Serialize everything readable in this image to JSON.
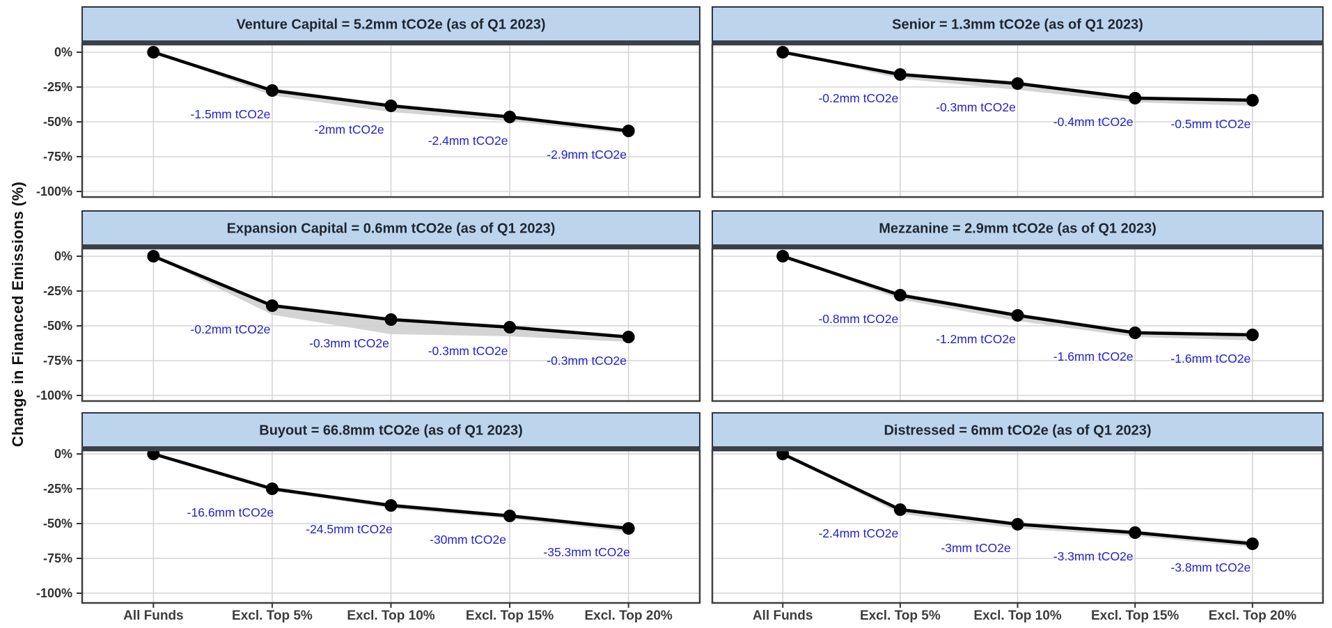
{
  "figure": {
    "y_axis_label": "Change in Financed Emissions (%)"
  },
  "colors": {
    "background": "#ffffff",
    "header_fill": "#bdd5ec",
    "header_border": "#2e3440",
    "header_bottom_bar": "#39404c",
    "panel_border": "#3f3f3f",
    "gridline": "#d5d5d5",
    "line": "#000000",
    "marker": "#000000",
    "band": "#cfcfcf",
    "point_label": "#2222cc",
    "axis_tick_text": "#303030",
    "x_label_text": "#3d3d3d"
  },
  "chart_data": {
    "type": "line",
    "layout": "facet-grid-2cols-3rows",
    "xlabel": "",
    "ylabel": "Change in Financed Emissions (%)",
    "ylim": [
      -100,
      0
    ],
    "grid": true,
    "x_categories": [
      "All Funds",
      "Excl. Top 5%",
      "Excl. Top 10%",
      "Excl. Top 15%",
      "Excl. Top 20%"
    ],
    "y_ticks": [
      "0%",
      "-25%",
      "-50%",
      "-75%",
      "-100%"
    ],
    "y_tick_values": [
      0,
      -25,
      -50,
      -75,
      -100
    ],
    "panels": [
      {
        "slug": "venture-capital",
        "title": "Venture Capital = 5.2mm tCO2e (as of Q1 2023)",
        "values_pct": [
          0,
          -27.5,
          -38.5,
          -46.5,
          -56.5
        ],
        "band_upper_pct": [
          0,
          -26,
          -37,
          -45,
          -55
        ],
        "band_lower_pct": [
          0,
          -31,
          -43,
          -49.5,
          -58.5
        ],
        "point_labels": [
          "",
          "-1.5mm tCO2e",
          "-2mm tCO2e",
          "-2.4mm tCO2e",
          "-2.9mm tCO2e"
        ]
      },
      {
        "slug": "senior",
        "title": "Senior = 1.3mm tCO2e (as of Q1 2023)",
        "values_pct": [
          0,
          -16,
          -22.5,
          -33,
          -34.5
        ],
        "band_upper_pct": [
          0,
          -14.5,
          -21,
          -31.5,
          -33
        ],
        "band_lower_pct": [
          0,
          -19,
          -27,
          -36,
          -38.5
        ],
        "point_labels": [
          "",
          "-0.2mm tCO2e",
          "-0.3mm tCO2e",
          "-0.4mm tCO2e",
          "-0.5mm tCO2e"
        ]
      },
      {
        "slug": "expansion-capital",
        "title": "Expansion Capital = 0.6mm tCO2e (as of Q1 2023)",
        "values_pct": [
          0,
          -35.5,
          -45.5,
          -51,
          -58
        ],
        "band_upper_pct": [
          0,
          -34,
          -44,
          -49.5,
          -56.5
        ],
        "band_lower_pct": [
          0,
          -42,
          -56,
          -57.5,
          -61.5
        ],
        "point_labels": [
          "",
          "-0.2mm tCO2e",
          "-0.3mm tCO2e",
          "-0.3mm tCO2e",
          "-0.3mm tCO2e"
        ]
      },
      {
        "slug": "mezzanine",
        "title": "Mezzanine = 2.9mm tCO2e (as of Q1 2023)",
        "values_pct": [
          0,
          -28,
          -42.5,
          -55,
          -56.5
        ],
        "band_upper_pct": [
          0,
          -26.5,
          -41,
          -53.5,
          -55
        ],
        "band_lower_pct": [
          0,
          -31,
          -46.5,
          -58,
          -60.5
        ],
        "point_labels": [
          "",
          "-0.8mm tCO2e",
          "-1.2mm tCO2e",
          "-1.6mm tCO2e",
          "-1.6mm tCO2e"
        ]
      },
      {
        "slug": "buyout",
        "title": "Buyout = 66.8mm tCO2e (as of Q1 2023)",
        "values_pct": [
          0,
          -25,
          -37,
          -44.5,
          -53.5
        ],
        "band_upper_pct": [
          0,
          -24,
          -35.5,
          -43,
          -52
        ],
        "band_lower_pct": [
          0,
          -26.5,
          -39,
          -46.5,
          -56
        ],
        "point_labels": [
          "",
          "-16.6mm tCO2e",
          "-24.5mm tCO2e",
          "-30mm tCO2e",
          "-35.3mm tCO2e"
        ]
      },
      {
        "slug": "distressed",
        "title": "Distressed = 6mm tCO2e (as of Q1 2023)",
        "values_pct": [
          0,
          -40,
          -50.5,
          -56.5,
          -64.5
        ],
        "band_upper_pct": [
          0,
          -38.5,
          -49,
          -55,
          -62.5
        ],
        "band_lower_pct": [
          0,
          -43,
          -53.5,
          -59,
          -67
        ],
        "point_labels": [
          "",
          "-2.4mm tCO2e",
          "-3mm tCO2e",
          "-3.3mm tCO2e",
          "-3.8mm tCO2e"
        ]
      }
    ]
  }
}
